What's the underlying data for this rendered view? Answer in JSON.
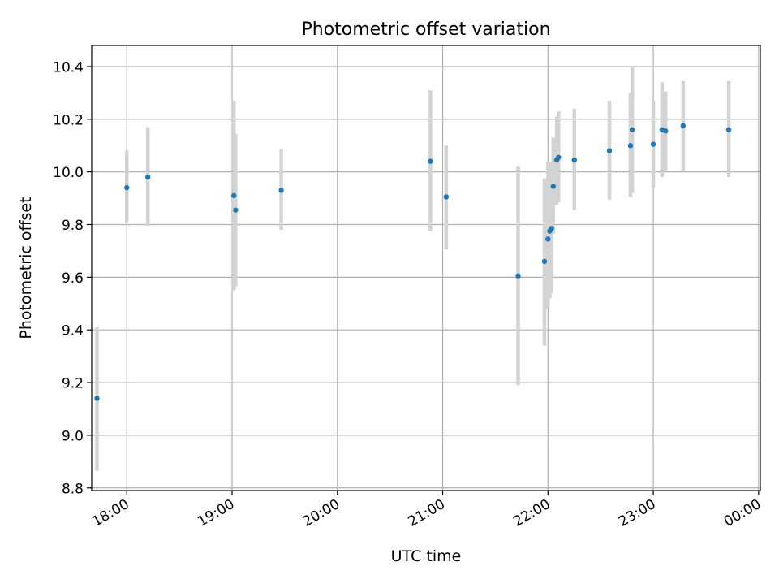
{
  "chart_data": {
    "type": "scatter",
    "title": "Photometric offset variation",
    "xlabel": "UTC time",
    "ylabel": "Photometric offset",
    "x_type": "time",
    "x_ticks": [
      "18:00",
      "19:00",
      "20:00",
      "21:00",
      "22:00",
      "23:00",
      "00:00"
    ],
    "xlim": [
      "17:40",
      "00:01"
    ],
    "ylim": [
      8.79,
      10.48
    ],
    "y_ticks": [
      8.8,
      9.0,
      9.2,
      9.4,
      9.6,
      9.8,
      10.0,
      10.2,
      10.4
    ],
    "grid": true,
    "colors": {
      "point": "#1f77b4",
      "errorbar": "#d3d3d3",
      "grid": "#b0b0b0"
    },
    "points": [
      {
        "x": "17:43",
        "y": 9.14,
        "ylow": 8.865,
        "yhigh": 9.41
      },
      {
        "x": "18:00",
        "y": 9.94,
        "ylow": 9.805,
        "yhigh": 10.08
      },
      {
        "x": "18:12",
        "y": 9.98,
        "ylow": 9.795,
        "yhigh": 10.17
      },
      {
        "x": "19:01",
        "y": 9.91,
        "ylow": 9.55,
        "yhigh": 10.27
      },
      {
        "x": "19:02",
        "y": 9.855,
        "ylow": 9.565,
        "yhigh": 10.145
      },
      {
        "x": "19:28",
        "y": 9.93,
        "ylow": 9.78,
        "yhigh": 10.085
      },
      {
        "x": "20:53",
        "y": 10.04,
        "ylow": 9.775,
        "yhigh": 10.31
      },
      {
        "x": "21:02",
        "y": 9.905,
        "ylow": 9.705,
        "yhigh": 10.1
      },
      {
        "x": "21:43",
        "y": 9.605,
        "ylow": 9.19,
        "yhigh": 10.02
      },
      {
        "x": "21:58",
        "y": 9.66,
        "ylow": 9.34,
        "yhigh": 9.975
      },
      {
        "x": "22:00",
        "y": 9.745,
        "ylow": 9.48,
        "yhigh": 10.035
      },
      {
        "x": "22:01",
        "y": 9.775,
        "ylow": 9.52,
        "yhigh": 10.035
      },
      {
        "x": "22:02",
        "y": 9.785,
        "ylow": 9.54,
        "yhigh": 10.035
      },
      {
        "x": "22:03",
        "y": 9.945,
        "ylow": 9.765,
        "yhigh": 10.13
      },
      {
        "x": "22:05",
        "y": 10.045,
        "ylow": 9.875,
        "yhigh": 10.21
      },
      {
        "x": "22:06",
        "y": 10.055,
        "ylow": 9.885,
        "yhigh": 10.23
      },
      {
        "x": "22:15",
        "y": 10.045,
        "ylow": 9.855,
        "yhigh": 10.24
      },
      {
        "x": "22:35",
        "y": 10.08,
        "ylow": 9.895,
        "yhigh": 10.27
      },
      {
        "x": "22:47",
        "y": 10.1,
        "ylow": 9.905,
        "yhigh": 10.3
      },
      {
        "x": "22:48",
        "y": 10.16,
        "ylow": 9.92,
        "yhigh": 10.4
      },
      {
        "x": "23:00",
        "y": 10.105,
        "ylow": 9.94,
        "yhigh": 10.27
      },
      {
        "x": "23:05",
        "y": 10.16,
        "ylow": 9.98,
        "yhigh": 10.34
      },
      {
        "x": "23:07",
        "y": 10.155,
        "ylow": 10.005,
        "yhigh": 10.305
      },
      {
        "x": "23:17",
        "y": 10.175,
        "ylow": 10.005,
        "yhigh": 10.345
      },
      {
        "x": "23:43",
        "y": 10.16,
        "ylow": 9.98,
        "yhigh": 10.345
      }
    ]
  }
}
